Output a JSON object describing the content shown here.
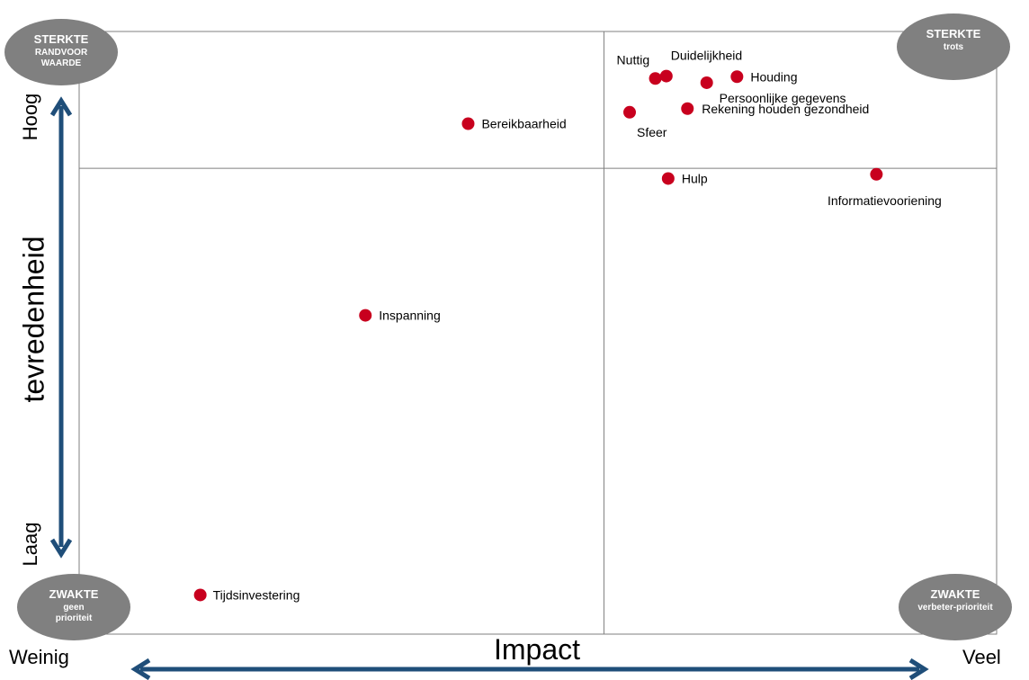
{
  "chart_data": {
    "type": "scatter",
    "title": "",
    "xlabel": "Impact",
    "ylabel": "tevredenheid",
    "x_low_label": "Weinig",
    "x_high_label": "Veel",
    "y_low_label": "Laag",
    "y_high_label": "Hoog",
    "xlim": [
      0,
      100
    ],
    "ylim": [
      0,
      100
    ],
    "divider_x": 57.2,
    "divider_y": 77.3,
    "grid": false,
    "point_color": "#c8001e",
    "points": [
      {
        "label": "Nuttig",
        "x": 62.8,
        "y": 92.2
      },
      {
        "label": "Duidelijkheid",
        "x": 64.0,
        "y": 92.6
      },
      {
        "label": "Houding",
        "x": 71.7,
        "y": 92.5
      },
      {
        "label": "Persoonlijke gegevens",
        "x": 68.4,
        "y": 91.5
      },
      {
        "label": "Rekening houden gezondheid",
        "x": 66.3,
        "y": 87.2
      },
      {
        "label": "Sfeer",
        "x": 60.0,
        "y": 86.6
      },
      {
        "label": "Bereikbaarheid",
        "x": 42.4,
        "y": 84.7
      },
      {
        "label": "Hulp",
        "x": 64.2,
        "y": 75.6
      },
      {
        "label": "Informatievooriening",
        "x": 86.9,
        "y": 76.3
      },
      {
        "label": "Inspanning",
        "x": 31.2,
        "y": 52.9
      },
      {
        "label": "Tijdsinvestering",
        "x": 13.2,
        "y": 6.5
      }
    ],
    "quadrant_badges": [
      {
        "title": "STERKTE",
        "subtitle": "RANDVOOR WAARDE",
        "position": "top-left"
      },
      {
        "title": "STERKTE",
        "subtitle": "trots",
        "position": "top-right"
      },
      {
        "title": "ZWAKTE",
        "subtitle": "geen prioriteit",
        "position": "bottom-left"
      },
      {
        "title": "ZWAKTE",
        "subtitle": "verbeter-prioriteit",
        "position": "bottom-right"
      }
    ],
    "badge_color": "#808080",
    "axis_arrow_color": "#1f4e79"
  }
}
